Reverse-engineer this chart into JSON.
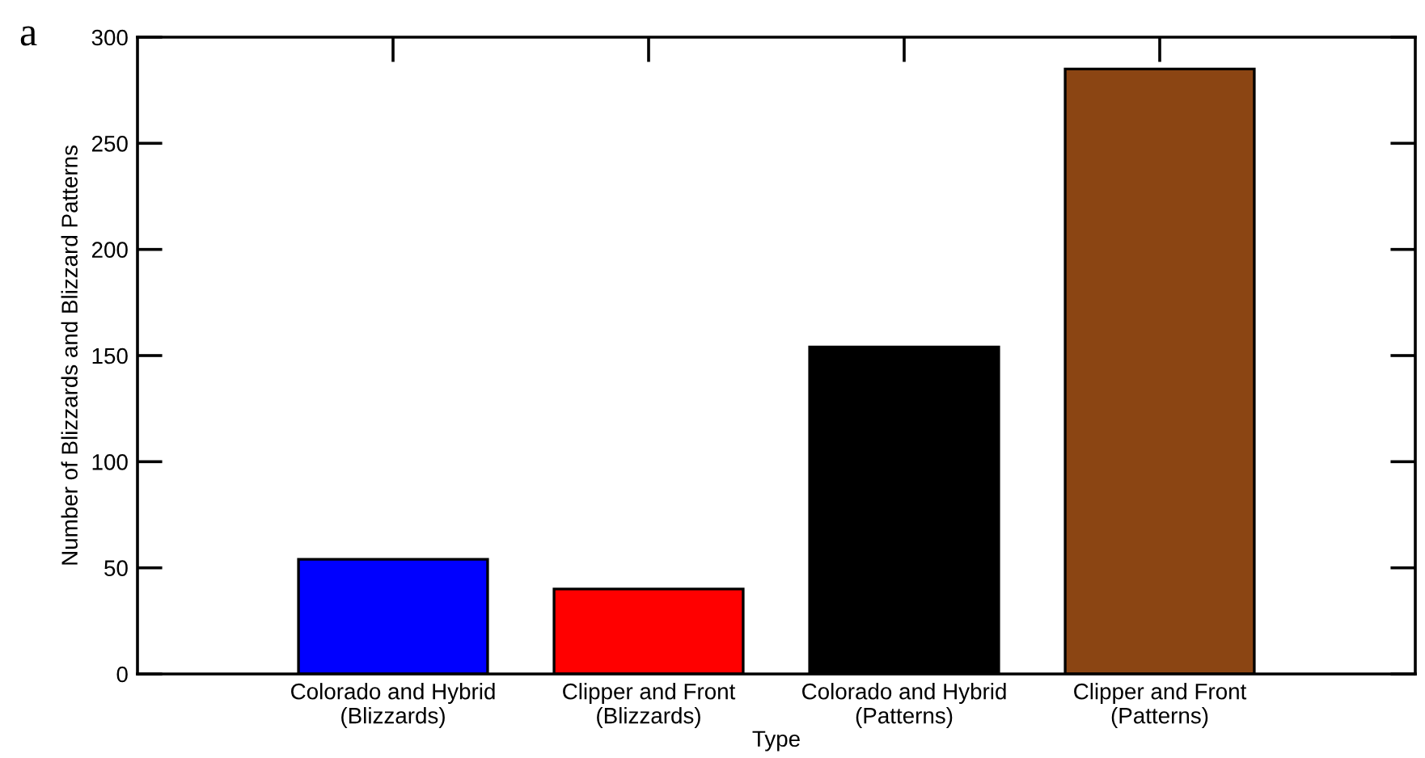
{
  "chart_data": {
    "type": "bar",
    "categories": [
      "Colorado and Hybrid\n(Blizzards)",
      "Clipper and Front\n(Blizzards)",
      "Colorado and Hybrid\n(Patterns)",
      "Clipper and Front\n(Patterns)"
    ],
    "values": [
      54,
      40,
      154,
      285
    ],
    "colors": [
      "#0000ff",
      "#ff0000",
      "#000000",
      "#8b4513"
    ],
    "xlabel": "Type",
    "ylabel": "Number of Blizzards and Blizzard Patterns",
    "ylim": [
      0,
      300
    ],
    "yticks": [
      0,
      50,
      100,
      150,
      200,
      250,
      300
    ],
    "annotations": [
      "a"
    ],
    "grid": false,
    "legend": false
  }
}
